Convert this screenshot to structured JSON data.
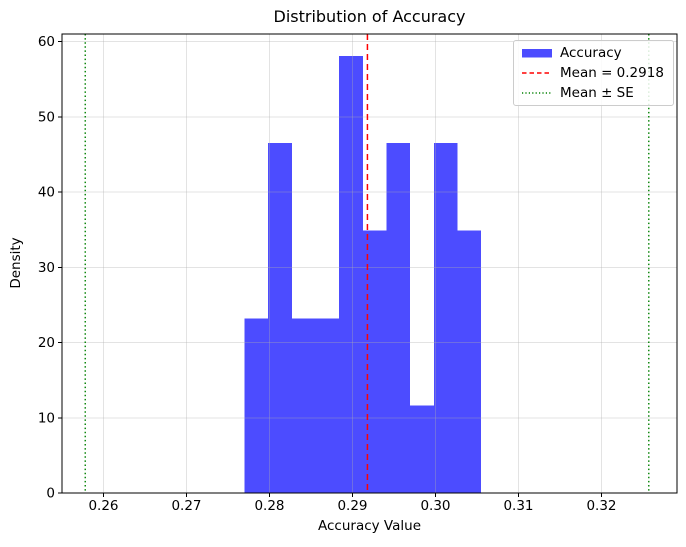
{
  "chart_data": {
    "type": "bar",
    "subtype": "histogram-density",
    "title": "Distribution of Accuracy",
    "xlabel": "Accuracy Value",
    "ylabel": "Density",
    "xlim": [
      0.255,
      0.3291
    ],
    "ylim": [
      0,
      61
    ],
    "xticks": [
      0.26,
      0.27,
      0.28,
      0.29,
      0.3,
      0.31,
      0.32
    ],
    "xtick_labels": [
      "0.26",
      "0.27",
      "0.28",
      "0.29",
      "0.30",
      "0.31",
      "0.32"
    ],
    "yticks": [
      0,
      10,
      20,
      30,
      40,
      50,
      60
    ],
    "ytick_labels": [
      "0",
      "10",
      "20",
      "30",
      "40",
      "50",
      "60"
    ],
    "grid": true,
    "bin_edges": [
      0.277,
      0.27985,
      0.2827,
      0.28555,
      0.2884,
      0.29125,
      0.2941,
      0.29695,
      0.2998,
      0.30265,
      0.3055
    ],
    "densities": [
      23.2,
      46.5,
      23.2,
      23.2,
      58.1,
      34.9,
      46.5,
      11.6,
      46.5,
      34.9
    ],
    "mean_line": {
      "value": 0.2918,
      "style": "dashed"
    },
    "se_lines": {
      "values": [
        0.2578,
        0.3257
      ],
      "style": "dotted"
    },
    "legend_position": "upper right",
    "legend_items": [
      {
        "label": "Accuracy",
        "swatch": "patch"
      },
      {
        "label": "Mean = 0.2918",
        "swatch": "dashed-line"
      },
      {
        "label": "Mean ± SE",
        "swatch": "dotted-line"
      }
    ],
    "colors": {
      "bar": "#4c4cff",
      "mean": "#ff0000",
      "se": "#008000",
      "grid": "rgba(176,176,176,0.35)",
      "spine": "#000000",
      "text": "#000000"
    }
  }
}
